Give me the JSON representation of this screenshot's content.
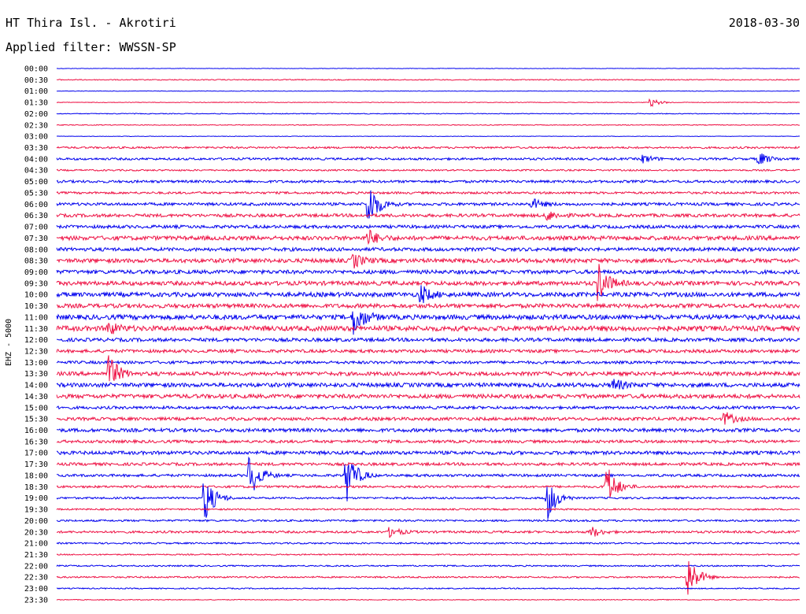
{
  "header": {
    "station": "HT Thira Isl. - Akrotiri",
    "date": "2018-03-30",
    "filter": "Applied filter: WWSSN-SP"
  },
  "chart_data": {
    "type": "line",
    "title": "HT Thira Isl. - Akrotiri",
    "ylabel": "EHZ - 5000",
    "row_labels": [
      "00:00",
      "00:30",
      "01:00",
      "01:30",
      "02:00",
      "02:30",
      "03:00",
      "03:30",
      "04:00",
      "04:30",
      "05:00",
      "05:30",
      "06:00",
      "06:30",
      "07:00",
      "07:30",
      "08:00",
      "08:30",
      "09:00",
      "09:30",
      "10:00",
      "10:30",
      "11:00",
      "11:30",
      "12:00",
      "12:30",
      "13:00",
      "13:30",
      "14:00",
      "14:30",
      "15:00",
      "15:30",
      "16:00",
      "16:30",
      "17:00",
      "17:30",
      "18:00",
      "18:30",
      "19:00",
      "19:30",
      "20:00",
      "20:30",
      "21:00",
      "21:30",
      "22:00",
      "22:30",
      "23:00",
      "23:30"
    ],
    "colors": [
      "#0000ee",
      "#ee1144"
    ],
    "noise_level": [
      0.3,
      0.6,
      0.3,
      0.4,
      0.5,
      0.5,
      0.3,
      1.2,
      1.4,
      1.0,
      1.6,
      1.4,
      1.8,
      2.0,
      2.0,
      2.6,
      2.2,
      2.6,
      2.4,
      2.6,
      2.8,
      2.6,
      3.0,
      3.2,
      2.2,
      2.0,
      1.8,
      2.4,
      2.6,
      2.6,
      1.8,
      2.0,
      2.2,
      1.8,
      2.2,
      1.8,
      1.6,
      1.4,
      1.2,
      1.0,
      1.2,
      1.4,
      1.0,
      0.8,
      0.9,
      1.0,
      0.7,
      0.5
    ],
    "events": [
      {
        "row": 3,
        "x": 0.8,
        "amp": 5
      },
      {
        "row": 8,
        "x": 0.79,
        "amp": 5
      },
      {
        "row": 8,
        "x": 0.945,
        "amp": 9
      },
      {
        "row": 12,
        "x": 0.42,
        "amp": 30
      },
      {
        "row": 12,
        "x": 0.64,
        "amp": 7
      },
      {
        "row": 13,
        "x": 0.66,
        "amp": 7
      },
      {
        "row": 15,
        "x": 0.42,
        "amp": 10
      },
      {
        "row": 17,
        "x": 0.4,
        "amp": 9
      },
      {
        "row": 19,
        "x": 0.73,
        "amp": 25
      },
      {
        "row": 20,
        "x": 0.49,
        "amp": 12
      },
      {
        "row": 22,
        "x": 0.4,
        "amp": 25
      },
      {
        "row": 23,
        "x": 0.07,
        "amp": 8
      },
      {
        "row": 27,
        "x": 0.07,
        "amp": 25
      },
      {
        "row": 28,
        "x": 0.75,
        "amp": 8
      },
      {
        "row": 31,
        "x": 0.9,
        "amp": 8
      },
      {
        "row": 36,
        "x": 0.39,
        "amp": 35
      },
      {
        "row": 36,
        "x": 0.26,
        "amp": 30
      },
      {
        "row": 37,
        "x": 0.74,
        "amp": 30
      },
      {
        "row": 38,
        "x": 0.2,
        "amp": 30
      },
      {
        "row": 38,
        "x": 0.66,
        "amp": 30
      },
      {
        "row": 41,
        "x": 0.45,
        "amp": 7
      },
      {
        "row": 41,
        "x": 0.72,
        "amp": 7
      },
      {
        "row": 45,
        "x": 0.85,
        "amp": 30
      }
    ],
    "x_range": [
      0,
      30
    ],
    "grid": false
  }
}
